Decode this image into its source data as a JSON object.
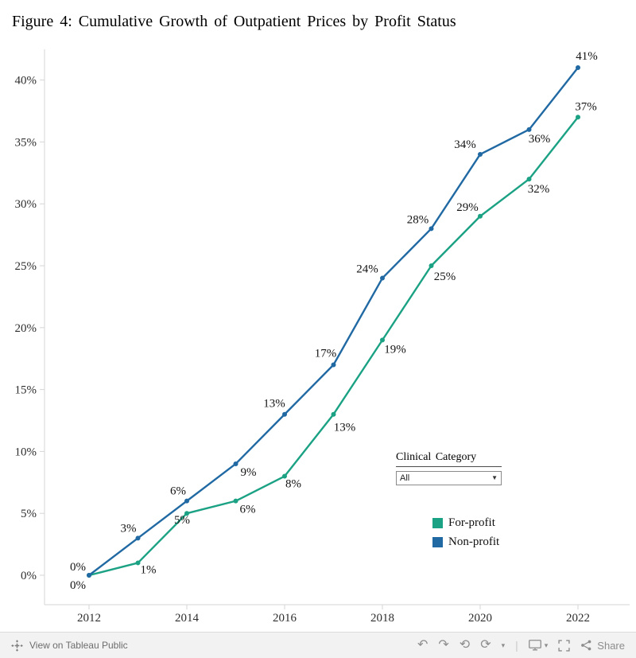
{
  "figure": {
    "title": "Figure 4: Cumulative Growth of Outpatient Prices by Profit Status"
  },
  "chart_data": {
    "type": "line",
    "title": "Figure 4: Cumulative Growth of Outpatient Prices by Profit Status",
    "x": [
      2012,
      2013,
      2014,
      2015,
      2016,
      2017,
      2018,
      2019,
      2020,
      2021,
      2022
    ],
    "series": [
      {
        "name": "For-profit",
        "color": "#1ba183",
        "values": [
          0,
          1,
          5,
          6,
          8,
          13,
          19,
          25,
          29,
          32,
          37
        ]
      },
      {
        "name": "Non-profit",
        "color": "#2069a3",
        "values": [
          0,
          3,
          6,
          9,
          13,
          17,
          24,
          28,
          34,
          36,
          41
        ]
      }
    ],
    "xlabel": "",
    "ylabel": "",
    "x_tick_labels": [
      "2012",
      "2014",
      "2016",
      "2018",
      "2020",
      "2022"
    ],
    "y_tick_labels": [
      "0%",
      "5%",
      "10%",
      "15%",
      "20%",
      "25%",
      "30%",
      "35%",
      "40%"
    ],
    "ylim": [
      0,
      43
    ],
    "grid": false,
    "data_labels": "percent on every point",
    "legend_position": "inside-right"
  },
  "controls": {
    "clinical_category": {
      "label": "Clinical Category",
      "selected": "All"
    }
  },
  "legend": {
    "items": [
      {
        "label": "For-profit",
        "color": "#1ba183"
      },
      {
        "label": "Non-profit",
        "color": "#2069a3"
      }
    ]
  },
  "toolbar": {
    "view_text": "View on Tableau Public",
    "share_label": "Share"
  },
  "icons": {
    "caret_down": "▼",
    "undo": "↶",
    "redo": "↷",
    "replay": "⟲",
    "refresh": "⟳",
    "menu_caret": "▾",
    "separator": "|"
  }
}
